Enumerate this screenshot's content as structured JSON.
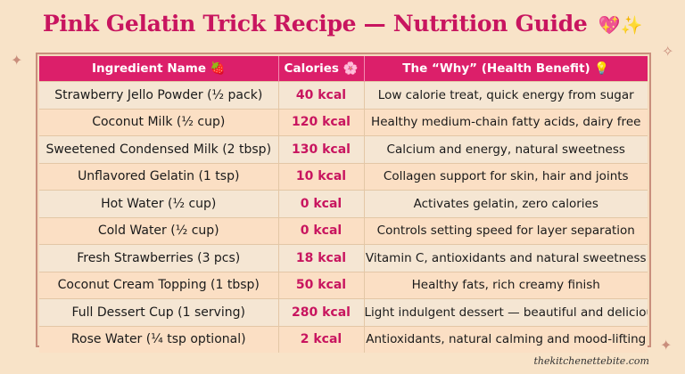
{
  "title": "Pink Gelatin Trick Recipe — Nutrition Guide",
  "title_emoji": "💖✨",
  "columns": {
    "ingredient": "Ingredient Name 🍓",
    "calories": "Calories 🌸",
    "why": "The “Why” (Health Benefit) 💡"
  },
  "rows": [
    {
      "ingredient": "Strawberry Jello Powder (½ pack)",
      "calories": "40 kcal",
      "why": "Low calorie treat, quick energy from sugar"
    },
    {
      "ingredient": "Coconut Milk (½ cup)",
      "calories": "120 kcal",
      "why": "Healthy medium-chain fatty acids, dairy free"
    },
    {
      "ingredient": "Sweetened Condensed Milk (2 tbsp)",
      "calories": "130 kcal",
      "why": "Calcium and energy, natural sweetness"
    },
    {
      "ingredient": "Unflavored Gelatin (1 tsp)",
      "calories": "10 kcal",
      "why": "Collagen support for skin, hair and joints"
    },
    {
      "ingredient": "Hot Water (½ cup)",
      "calories": "0 kcal",
      "why": "Activates gelatin, zero calories"
    },
    {
      "ingredient": "Cold Water (½ cup)",
      "calories": "0 kcal",
      "why": "Controls setting speed for layer separation"
    },
    {
      "ingredient": "Fresh Strawberries (3 pcs)",
      "calories": "18 kcal",
      "why": "Vitamin C, antioxidants and natural sweetness"
    },
    {
      "ingredient": "Coconut Cream Topping (1 tbsp)",
      "calories": "50 kcal",
      "why": "Healthy fats, rich creamy finish"
    },
    {
      "ingredient": "Full Dessert Cup (1 serving)",
      "calories": "280 kcal",
      "why": "Light indulgent dessert — beautiful and delicious"
    },
    {
      "ingredient": "Rose Water (¼ tsp optional)",
      "calories": "2 kcal",
      "why": "Antioxidants, natural calming and mood-lifting"
    }
  ],
  "footer": "thekitchenettebite.com",
  "colors": {
    "accent": "#dc1f6a",
    "title": "#c8155f",
    "background": "#f8e3c8"
  }
}
